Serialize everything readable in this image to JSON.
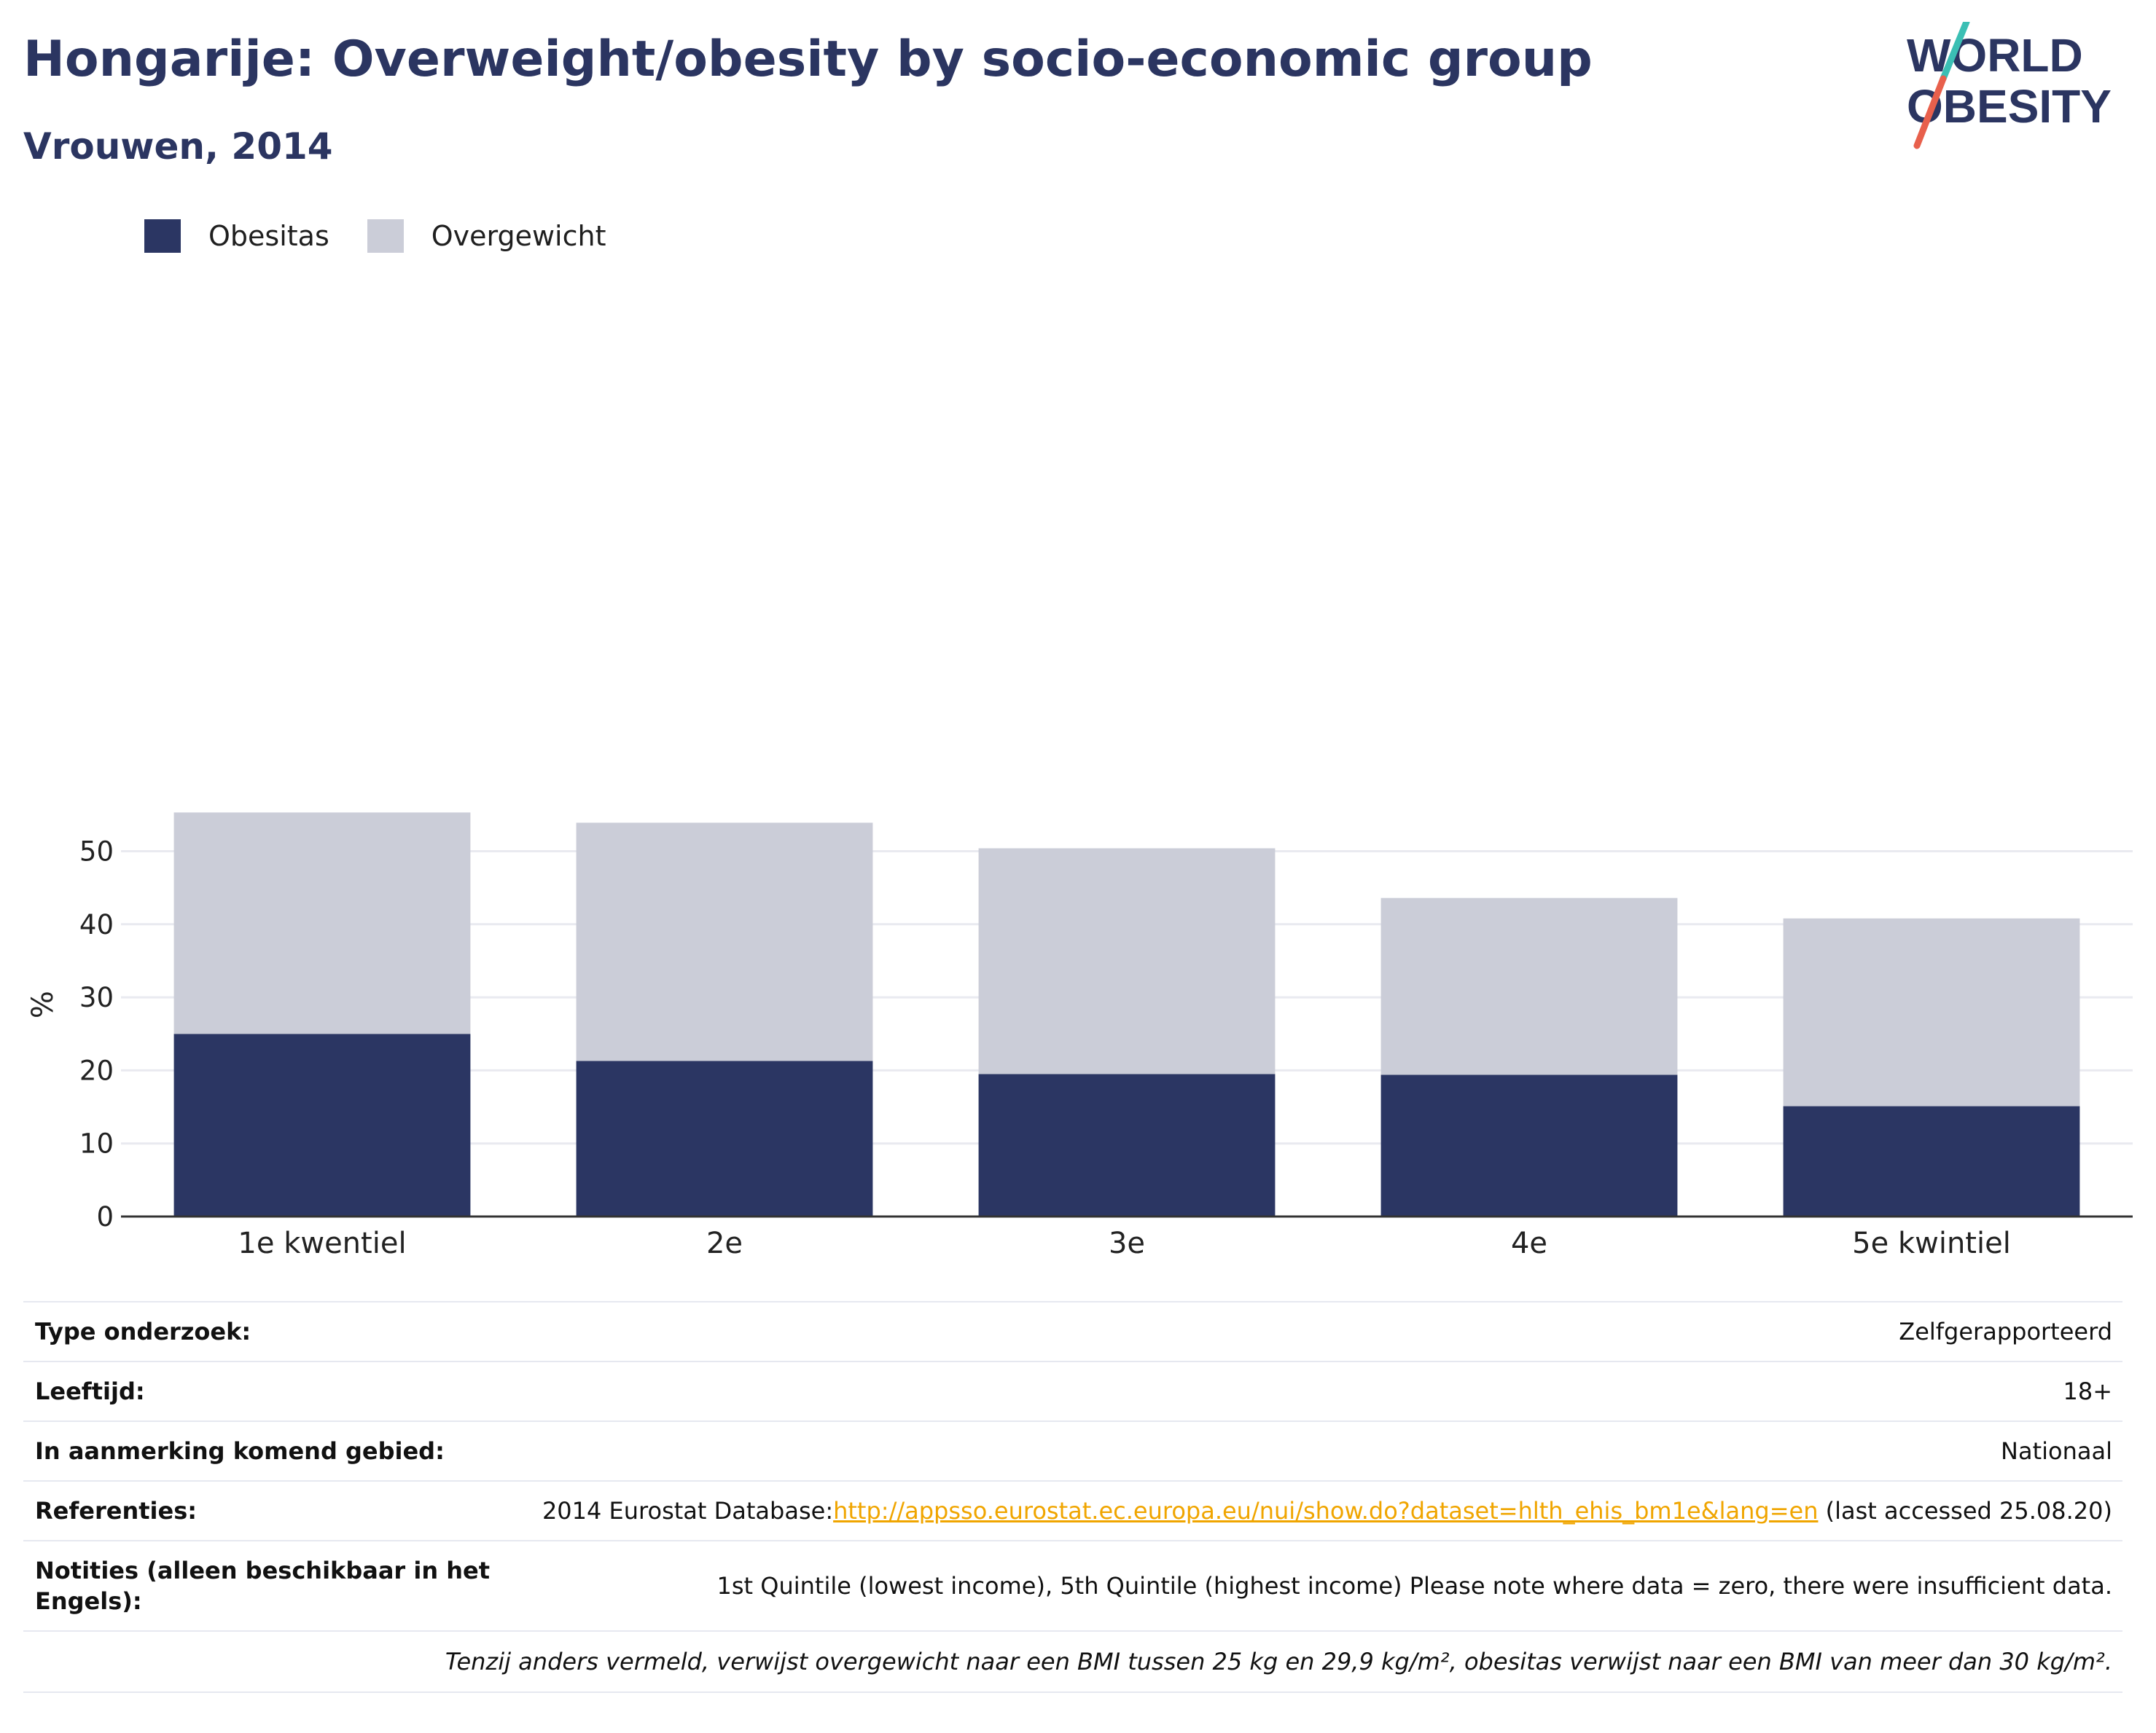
{
  "header": {
    "title": "Hongarije: Overweight/obesity by socio-economic group",
    "subtitle": "Vrouwen, 2014"
  },
  "logo": {
    "line1": "WORLD",
    "line2": "OBESITY",
    "slash_top_color": "#3bbfb4",
    "slash_bottom_color": "#e8604c"
  },
  "colors": {
    "obesitas": "#2b3663",
    "overgewicht": "#cbcdd8",
    "title": "#2b3561",
    "link": "#f0a500"
  },
  "legend": [
    {
      "label": "Obesitas",
      "color_key": "obesitas"
    },
    {
      "label": "Overgewicht",
      "color_key": "overgewicht"
    }
  ],
  "chart_data": {
    "type": "bar",
    "stacked": true,
    "categories": [
      "1e kwentiel",
      "2e",
      "3e",
      "4e",
      "5e kwintiel"
    ],
    "series": [
      {
        "name": "Obesitas",
        "values": [
          25.0,
          21.3,
          19.5,
          19.4,
          15.1
        ]
      },
      {
        "name": "Overgewicht",
        "values": [
          30.3,
          32.6,
          30.9,
          24.2,
          25.7
        ]
      }
    ],
    "ylabel": "%",
    "xlabel": "",
    "ylim": [
      0,
      60
    ],
    "yticks": [
      0,
      10,
      20,
      30,
      40,
      50
    ],
    "grid": true,
    "legend_position": "top-left"
  },
  "meta": {
    "survey_type_label": "Type onderzoek:",
    "survey_type_value": "Zelfgerapporteerd",
    "age_label": "Leeftijd:",
    "age_value": "18+",
    "area_label": "In aanmerking komend gebied:",
    "area_value": "Nationaal",
    "references_label": "Referenties:",
    "references_prefix": "2014 Eurostat Database:",
    "references_link": "http://appsso.eurostat.ec.europa.eu/nui/show.do?dataset=hlth_ehis_bm1e&lang=en",
    "references_suffix": " (last accessed 25.08.20)",
    "notes_label": "Notities (alleen beschikbaar in het Engels):",
    "notes_value": "1st Quintile (lowest income), 5th Quintile (highest income) Please note where data = zero, there were insufficient data.",
    "definition_note": "Tenzij anders vermeld, verwijst overgewicht naar een BMI tussen 25 kg en 29,9 kg/m², obesitas verwijst naar een BMI van meer dan 30 kg/m²."
  }
}
